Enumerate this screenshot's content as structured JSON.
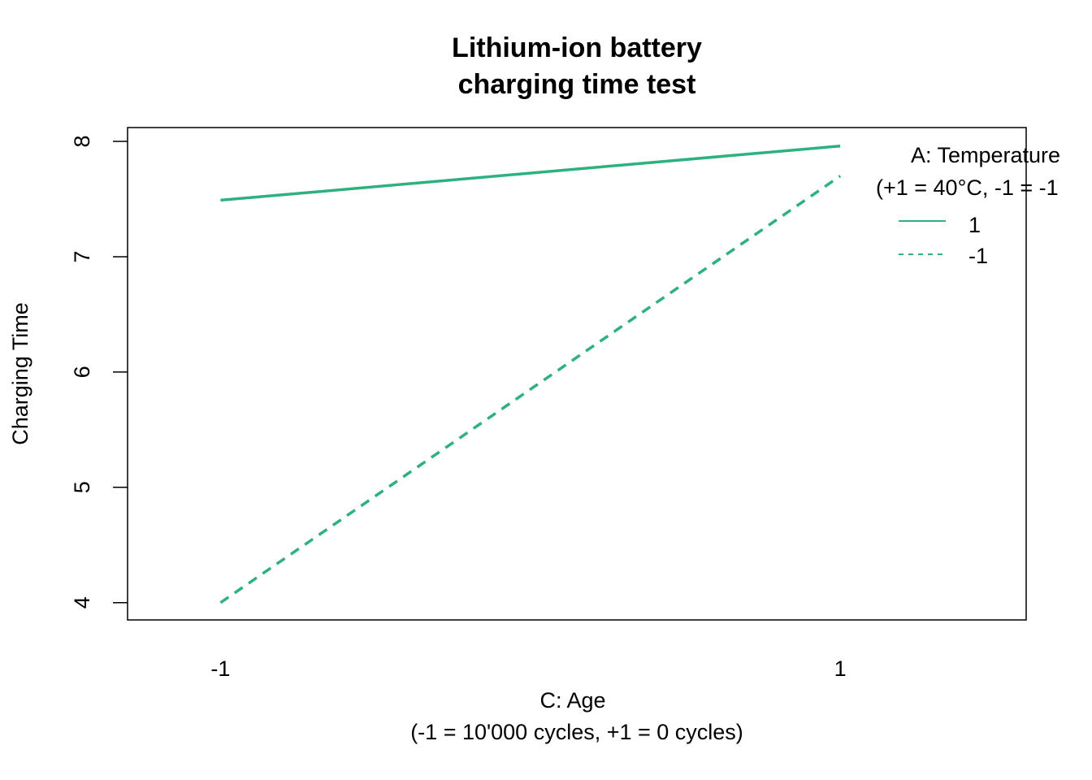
{
  "chart_data": {
    "type": "line",
    "title_lines": [
      "Lithium-ion battery",
      "charging time test"
    ],
    "xlabel_lines": [
      "C: Age",
      "(-1 = 10'000 cycles, +1 = 0 cycles)"
    ],
    "ylabel": "Charging Time",
    "x": [
      -1,
      1
    ],
    "x_tick_labels": [
      "-1",
      "1"
    ],
    "xlim": [
      -1.3,
      1.6
    ],
    "y_ticks": [
      4,
      5,
      6,
      7,
      8
    ],
    "y_tick_labels": [
      "4",
      "5",
      "6",
      "7",
      "8"
    ],
    "ylim": [
      3.85,
      8.12
    ],
    "series": [
      {
        "name": "1",
        "values": [
          7.49,
          7.96
        ],
        "color": "#2eb07f",
        "dash": "solid"
      },
      {
        "name": "-1",
        "values": [
          4.0,
          7.7
        ],
        "color": "#2eb07f",
        "dash": "dashed"
      }
    ],
    "legend": {
      "title_lines": [
        "A: Temperature",
        "(+1 = 40°C, -1 = -1"
      ],
      "placement": "top-right",
      "border": false
    },
    "grid": false
  }
}
